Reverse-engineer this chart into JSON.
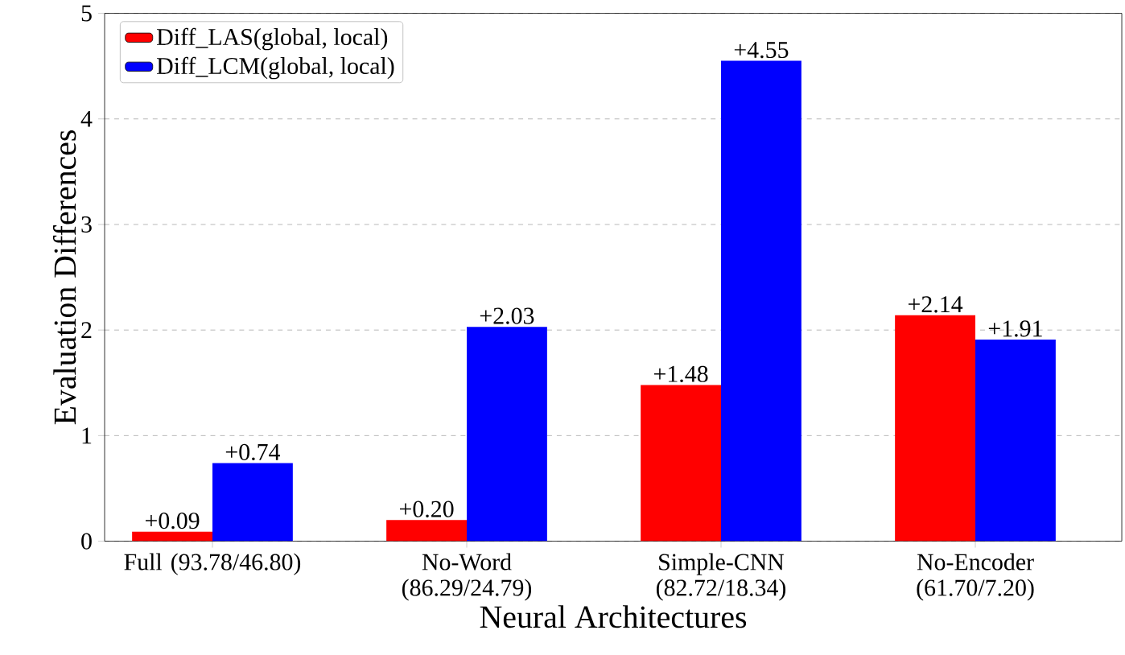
{
  "chart_data": {
    "type": "bar",
    "xlabel": "Neural Architectures",
    "ylabel": "Evaluation Differences",
    "categories": [
      "Full (93.78/46.80)",
      "No-Word (86.29/24.79)",
      "Simple-CNN (82.72/18.34)",
      "No-Encoder (61.70/7.20)"
    ],
    "series": [
      {
        "name": "Diff_LAS(global, local)",
        "color": "#ff0000",
        "values": [
          0.09,
          0.2,
          1.48,
          2.14
        ],
        "value_labels": [
          "+0.09",
          "+0.20",
          "+1.48",
          "+2.14"
        ]
      },
      {
        "name": "Diff_LCM(global, local)",
        "color": "#0000ff",
        "values": [
          0.74,
          2.03,
          4.55,
          1.91
        ],
        "value_labels": [
          "+0.74",
          "+2.03",
          "+4.55",
          "+1.91"
        ]
      }
    ],
    "ylim": [
      0,
      5
    ],
    "yticks": [
      0,
      1,
      2,
      3,
      4,
      5
    ],
    "grid": "y",
    "legend": "top left"
  }
}
